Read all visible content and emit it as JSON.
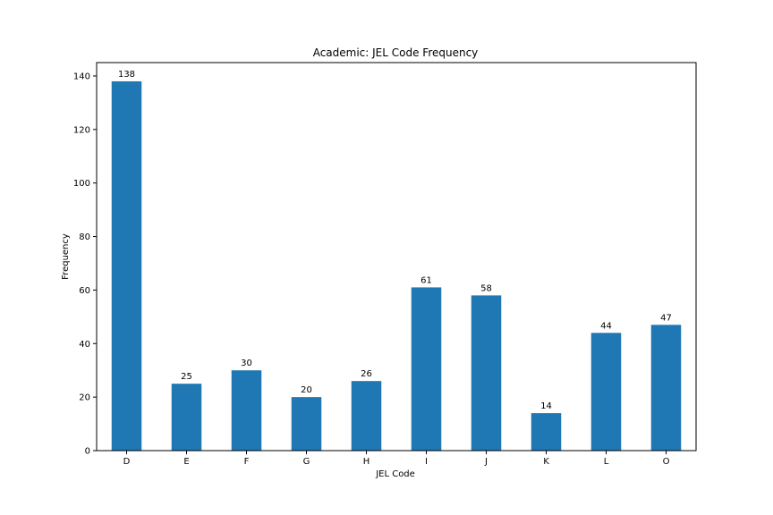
{
  "chart_data": {
    "type": "bar",
    "title": "Academic: JEL Code Frequency",
    "xlabel": "JEL Code",
    "ylabel": "Frequency",
    "categories": [
      "D",
      "E",
      "F",
      "G",
      "H",
      "I",
      "J",
      "K",
      "L",
      "O"
    ],
    "values": [
      138,
      25,
      30,
      20,
      26,
      61,
      58,
      14,
      44,
      47
    ],
    "ylim": [
      0,
      145
    ],
    "yticks": [
      0,
      20,
      40,
      60,
      80,
      100,
      120,
      140
    ],
    "grid": false,
    "legend": "none",
    "bar_color": "#1f77b4"
  }
}
